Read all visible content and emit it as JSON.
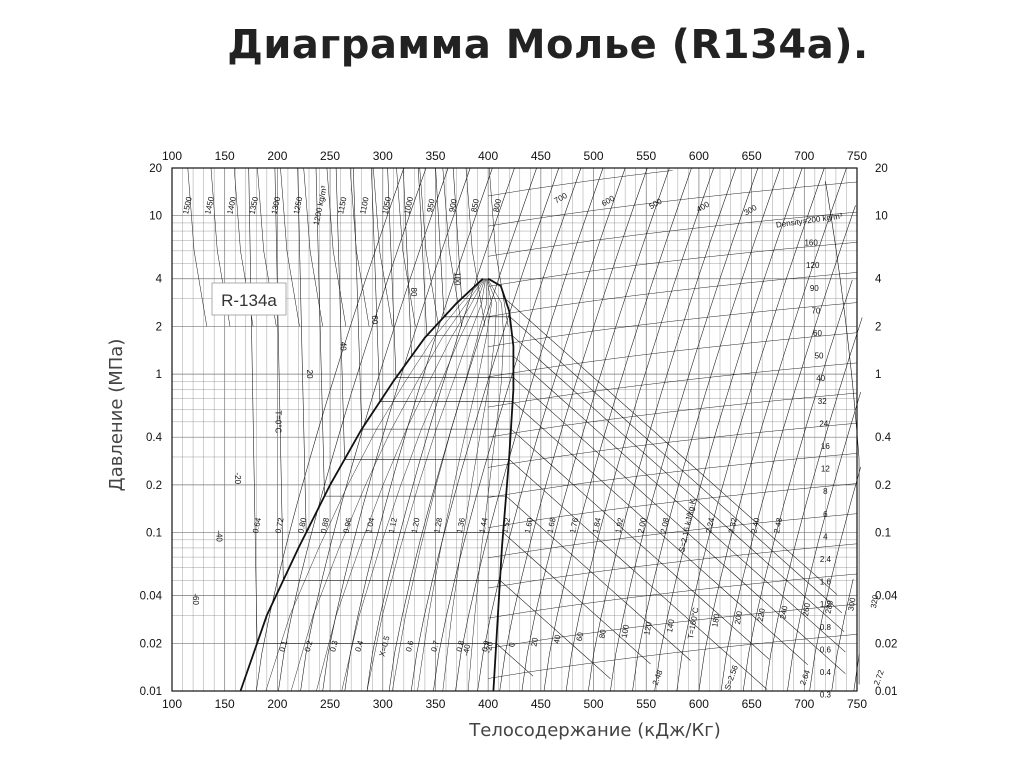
{
  "title": "Диаграмма Молье (R134a).",
  "chart_data": {
    "type": "line",
    "xlabel": "Телосодержание (кДж/Кг)",
    "ylabel": "Давление (МПа)",
    "refrigerant_label": "R-134a",
    "xlim": [
      100,
      750
    ],
    "ylim": [
      0.01,
      20
    ],
    "y_scale": "log",
    "x_ticks": [
      100,
      150,
      200,
      250,
      300,
      350,
      400,
      450,
      500,
      550,
      600,
      650,
      700,
      750
    ],
    "y_ticks": [
      {
        "value": 0.01,
        "label": "0.01"
      },
      {
        "value": 0.02,
        "label": "0.02"
      },
      {
        "value": 0.04,
        "label": "0.04"
      },
      {
        "value": 0.1,
        "label": "0.1"
      },
      {
        "value": 0.2,
        "label": "0.2"
      },
      {
        "value": 0.4,
        "label": "0.4"
      },
      {
        "value": 1,
        "label": "1"
      },
      {
        "value": 2,
        "label": "2"
      },
      {
        "value": 4,
        "label": "4"
      },
      {
        "value": 10,
        "label": "10"
      },
      {
        "value": 20,
        "label": "20"
      }
    ],
    "grid": true,
    "saturation_dome": {
      "liquid_h": [
        165,
        190,
        220,
        250,
        280,
        310,
        340,
        370,
        395
      ],
      "liquid_p": [
        0.01,
        0.03,
        0.08,
        0.2,
        0.45,
        0.9,
        1.7,
        2.8,
        4.0
      ],
      "vapor_h": [
        400,
        412,
        420,
        424,
        424,
        420,
        413,
        405
      ],
      "vapor_p": [
        4.0,
        3.6,
        2.5,
        1.5,
        0.8,
        0.3,
        0.08,
        0.01
      ]
    },
    "isotherm_labels": [
      "T=0°C",
      "20",
      "40",
      "60",
      "80",
      "100",
      "-20",
      "-40",
      "-60"
    ],
    "superheat_isotherm_labels": [
      "-40",
      "-20",
      "0",
      "20",
      "40",
      "60",
      "80",
      "100",
      "120",
      "140",
      "T=160°C",
      "180",
      "200",
      "220",
      "240",
      "260",
      "280",
      "300",
      "320"
    ],
    "entropy_labels": [
      "0.64",
      "0.72",
      "0.80",
      "0.88",
      "0.96",
      "1.04",
      "1.12",
      "1.20",
      "1.28",
      "1.36",
      "1.44",
      "1.52",
      "1.60",
      "1.68",
      "1.76",
      "1.84",
      "1.92",
      "2.00",
      "2.08",
      "S=2.16 kJ/kg·K",
      "2.24",
      "2.32",
      "2.40",
      "2.48"
    ],
    "quality_labels": [
      "0.1",
      "0.2",
      "0.3",
      "0.4",
      "X=0.5",
      "0.6",
      "0.7",
      "0.8",
      "0.9"
    ],
    "liquid_density_labels": [
      "1500",
      "1450",
      "1400",
      "1350",
      "1300",
      "1250",
      "1200 kg/m³",
      "1150",
      "1100",
      "1050",
      "1000",
      "950",
      "900",
      "850",
      "800",
      "700",
      "600",
      "500",
      "400",
      "300"
    ],
    "vapor_density_labels": [
      "Density=200 kg/m³",
      "160",
      "120",
      "90",
      "70",
      "60",
      "50",
      "40",
      "32",
      "24",
      "16",
      "12",
      "8",
      "6",
      "4",
      "2.4",
      "1.6",
      "1.2",
      "0.8",
      "0.6",
      "0.4",
      "0.3"
    ],
    "low_entropy_labels": [
      "2.48",
      "S=2.56",
      "2.64",
      "2.72"
    ]
  }
}
